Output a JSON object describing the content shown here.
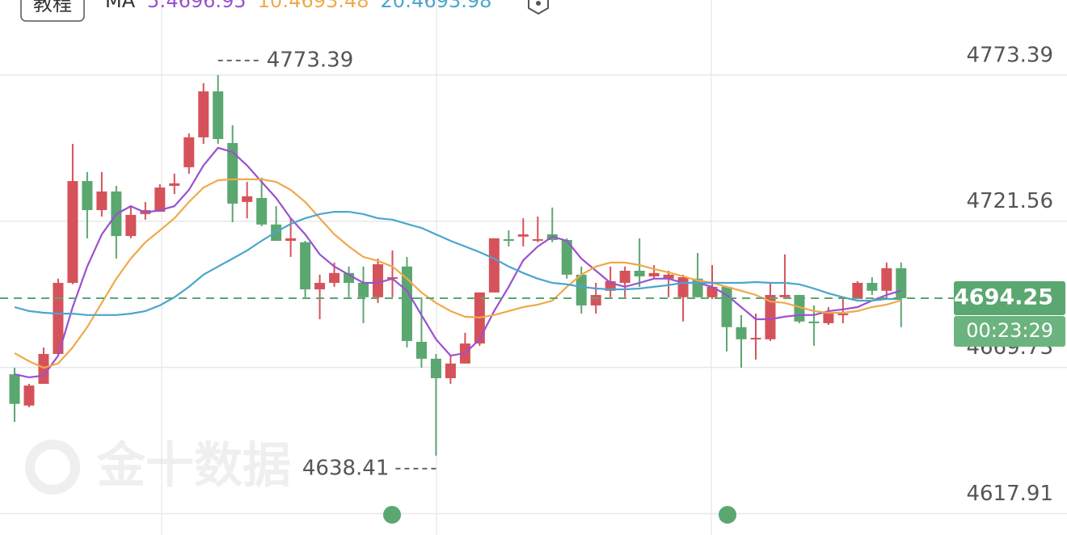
{
  "chart_data": {
    "type": "candlestick",
    "tab_label": "教程",
    "indicator": "MA",
    "watermark": "金十数据",
    "countdown": "00:23:29",
    "categories": [
      null,
      null,
      null,
      null,
      null,
      null,
      null,
      null,
      null,
      null,
      null,
      null,
      null,
      null,
      null,
      null,
      null,
      null,
      null,
      null,
      null,
      null,
      null,
      null,
      null,
      null,
      null,
      null,
      null,
      null,
      null,
      null,
      null,
      null,
      null,
      null,
      null,
      null,
      null,
      null,
      null,
      null,
      null,
      null,
      null,
      null,
      null,
      null,
      null,
      null,
      null,
      null,
      null,
      null,
      null,
      null,
      null,
      null,
      null,
      null,
      null,
      null
    ],
    "open": [
      4667.3,
      4656.2,
      4663.9,
      4674.5,
      4699.7,
      4735.8,
      4725.5,
      4732.1,
      4716.3,
      4724.1,
      4724.9,
      4734.1,
      4740.7,
      4751.3,
      4767.6,
      4749.3,
      4728.4,
      4729.8,
      4720.4,
      4714.6,
      4714.1,
      4697.4,
      4699.7,
      4703.2,
      4699.7,
      4694.6,
      4701.2,
      4705.5,
      4678.8,
      4672.8,
      4665.9,
      4671.1,
      4678.2,
      4696.3,
      4715.2,
      4716.1,
      4714.9,
      4716.9,
      4714.9,
      4702.6,
      4691.7,
      4696.9,
      4699.7,
      4704.0,
      4702.0,
      4701.2,
      4694.6,
      4701.2,
      4694.6,
      4698.3,
      4684.0,
      4679.7,
      4679.7,
      4694.6,
      4695.4,
      4686.0,
      4685.4,
      4688.3,
      4694.0,
      4699.7,
      4696.9,
      4704.9
    ],
    "close": [
      4656.8,
      4663.3,
      4674.5,
      4699.7,
      4735.8,
      4725.5,
      4732.1,
      4716.3,
      4723.8,
      4725.5,
      4733.5,
      4735.0,
      4751.3,
      4767.6,
      4750.7,
      4727.8,
      4730.4,
      4720.4,
      4714.6,
      4715.5,
      4697.4,
      4699.7,
      4703.2,
      4699.7,
      4694.6,
      4706.3,
      4701.7,
      4679.1,
      4672.8,
      4665.9,
      4671.1,
      4678.2,
      4696.3,
      4715.5,
      4714.6,
      4716.9,
      4715.2,
      4714.9,
      4702.6,
      4691.7,
      4695.4,
      4700.3,
      4704.0,
      4702.0,
      4703.2,
      4702.6,
      4701.7,
      4694.6,
      4698.3,
      4684.0,
      4679.7,
      4680.2,
      4695.4,
      4695.4,
      4686.0,
      4685.4,
      4689.1,
      4688.8,
      4699.7,
      4696.9,
      4704.9,
      4694.25
    ],
    "high": [
      4669.6,
      4663.9,
      4676.8,
      4701.2,
      4749.0,
      4739.0,
      4739.0,
      4734.1,
      4726.9,
      4728.4,
      4734.7,
      4738.4,
      4752.7,
      4770.5,
      4773.39,
      4755.6,
      4735.5,
      4737.0,
      4726.9,
      4722.6,
      4714.6,
      4702.6,
      4706.9,
      4705.5,
      4705.5,
      4708.3,
      4711.2,
      4708.9,
      4694.6,
      4674.5,
      4673.9,
      4682.0,
      4696.3,
      4715.5,
      4718.3,
      4722.6,
      4723.2,
      4726.4,
      4715.5,
      4705.5,
      4699.7,
      4705.5,
      4705.5,
      4715.5,
      4706.0,
      4704.0,
      4702.6,
      4710.3,
      4706.0,
      4698.3,
      4688.3,
      4688.8,
      4699.7,
      4709.8,
      4695.4,
      4691.7,
      4691.1,
      4694.0,
      4700.3,
      4701.7,
      4706.9,
      4706.9
    ],
    "low": [
      4650.4,
      4655.6,
      4663.9,
      4673.9,
      4699.2,
      4715.5,
      4723.2,
      4708.3,
      4715.5,
      4722.1,
      4724.9,
      4731.2,
      4738.4,
      4749.0,
      4749.0,
      4721.2,
      4722.6,
      4719.8,
      4714.6,
      4708.9,
      4694.6,
      4686.8,
      4698.3,
      4694.6,
      4685.4,
      4692.6,
      4694.6,
      4676.8,
      4669.6,
      4638.41,
      4663.9,
      4671.1,
      4677.4,
      4696.3,
      4712.6,
      4712.6,
      4714.1,
      4714.1,
      4701.2,
      4688.8,
      4688.8,
      4694.6,
      4694.6,
      4698.3,
      4701.2,
      4694.6,
      4686.0,
      4694.6,
      4694.0,
      4675.4,
      4669.6,
      4672.5,
      4679.1,
      4694.6,
      4685.4,
      4677.4,
      4684.8,
      4685.4,
      4694.0,
      4695.4,
      4694.6,
      4684.0
    ],
    "up_color": "#d6525a",
    "down_color": "#5ba770",
    "series": [
      {
        "name": "5:4696.95",
        "color": "#9b51cf",
        "values": [
          4667.3,
          4666.2,
          4666.8,
          4673.9,
          4691.1,
          4705.5,
          4716.9,
          4724.1,
          4726.9,
          4724.6,
          4725.5,
          4726.9,
          4732.7,
          4741.3,
          4747.6,
          4746.1,
          4741.3,
          4735.5,
          4729.8,
          4722.6,
          4716.9,
          4709.8,
          4705.5,
          4702.6,
          4699.7,
          4699.7,
          4701.2,
          4696.9,
          4688.3,
          4679.7,
          4673.9,
          4674.8,
          4679.7,
          4689.7,
          4698.3,
          4707.7,
          4712.6,
          4716.1,
          4714.6,
          4708.3,
          4704.0,
          4699.7,
          4698.3,
          4699.7,
          4701.2,
          4701.2,
          4699.7,
          4699.7,
          4698.3,
          4695.4,
          4691.1,
          4686.8,
          4686.8,
          4687.7,
          4688.3,
          4688.3,
          4689.7,
          4690.3,
          4691.1,
          4693.4,
          4695.4,
          4696.95
        ]
      },
      {
        "name": "10:4693.48",
        "color": "#f0a94a",
        "values": [
          4674.8,
          4671.9,
          4669.6,
          4671.1,
          4676.8,
          4684.0,
          4692.6,
          4701.2,
          4708.3,
          4714.1,
          4718.3,
          4722.6,
          4728.4,
          4733.5,
          4736.1,
          4736.4,
          4736.4,
          4736.4,
          4735.5,
          4732.7,
          4728.4,
          4722.6,
          4716.9,
          4712.6,
          4708.9,
          4707.5,
          4705.5,
          4701.2,
          4696.3,
          4692.6,
          4689.7,
          4687.7,
          4687.4,
          4688.3,
          4689.7,
          4691.1,
          4692.0,
          4693.4,
          4698.3,
          4702.6,
          4705.5,
          4706.9,
          4706.9,
          4706.0,
          4704.6,
          4703.4,
          4702.0,
          4700.6,
          4699.7,
          4698.3,
          4696.9,
          4695.4,
          4693.1,
          4692.6,
          4691.1,
          4689.7,
          4689.1,
          4689.1,
          4689.7,
          4691.1,
          4692.0,
          4693.48
        ]
      },
      {
        "name": "20:4693.98",
        "color": "#4ba5cc",
        "values": [
          4691.1,
          4689.7,
          4689.1,
          4688.8,
          4688.8,
          4688.3,
          4688.3,
          4688.3,
          4688.8,
          4689.7,
          4691.7,
          4694.6,
          4698.3,
          4702.6,
          4705.5,
          4708.3,
          4711.2,
          4714.6,
          4717.8,
          4720.6,
          4722.6,
          4724.1,
          4724.9,
          4724.9,
          4724.1,
          4722.6,
          4722.1,
          4720.6,
          4719.2,
          4716.9,
          4714.6,
          4712.6,
          4710.6,
          4708.3,
          4705.5,
          4703.2,
          4701.2,
          4699.7,
          4699.2,
          4698.3,
          4697.7,
          4697.4,
          4697.4,
          4697.7,
          4698.3,
          4698.9,
          4699.7,
          4699.7,
          4699.7,
          4699.7,
          4699.7,
          4700.0,
          4699.7,
          4699.7,
          4699.2,
          4697.7,
          4696.0,
          4694.6,
          4693.4,
          4693.4,
          4694.0,
          4693.98
        ]
      }
    ],
    "ylim": [
      4610.3,
      4800.0
    ],
    "yticks": [
      4773.39,
      4721.56,
      4669.73,
      4617.91
    ],
    "grid": true
  }
}
